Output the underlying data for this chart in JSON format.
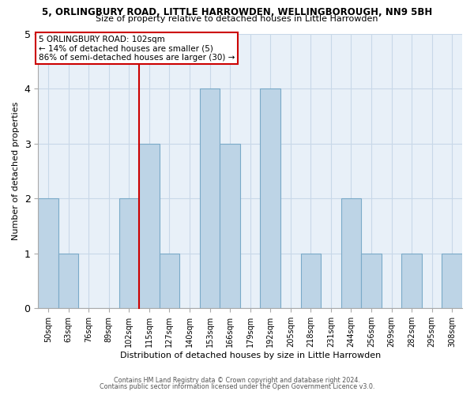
{
  "title_line1": "5, ORLINGBURY ROAD, LITTLE HARROWDEN, WELLINGBOROUGH, NN9 5BH",
  "title_line2": "Size of property relative to detached houses in Little Harrowden",
  "xlabel": "Distribution of detached houses by size in Little Harrowden",
  "ylabel": "Number of detached properties",
  "bin_labels": [
    "50sqm",
    "63sqm",
    "76sqm",
    "89sqm",
    "102sqm",
    "115sqm",
    "127sqm",
    "140sqm",
    "153sqm",
    "166sqm",
    "179sqm",
    "192sqm",
    "205sqm",
    "218sqm",
    "231sqm",
    "244sqm",
    "256sqm",
    "269sqm",
    "282sqm",
    "295sqm",
    "308sqm"
  ],
  "bar_heights": [
    2,
    1,
    0,
    0,
    2,
    3,
    1,
    0,
    4,
    3,
    0,
    4,
    0,
    1,
    0,
    2,
    1,
    0,
    1,
    0,
    1
  ],
  "bar_color": "#bdd4e6",
  "bar_edge_color": "#7aaac8",
  "subject_bar_index": 4,
  "annotation_title": "5 ORLINGBURY ROAD: 102sqm",
  "annotation_line2": "← 14% of detached houses are smaller (5)",
  "annotation_line3": "86% of semi-detached houses are larger (30) →",
  "annotation_box_color": "#cc0000",
  "ylim": [
    0,
    5
  ],
  "yticks": [
    0,
    1,
    2,
    3,
    4,
    5
  ],
  "plot_bg_color": "#e8f0f8",
  "grid_color": "#c8d8e8",
  "footer_line1": "Contains HM Land Registry data © Crown copyright and database right 2024.",
  "footer_line2": "Contains public sector information licensed under the Open Government Licence v3.0."
}
